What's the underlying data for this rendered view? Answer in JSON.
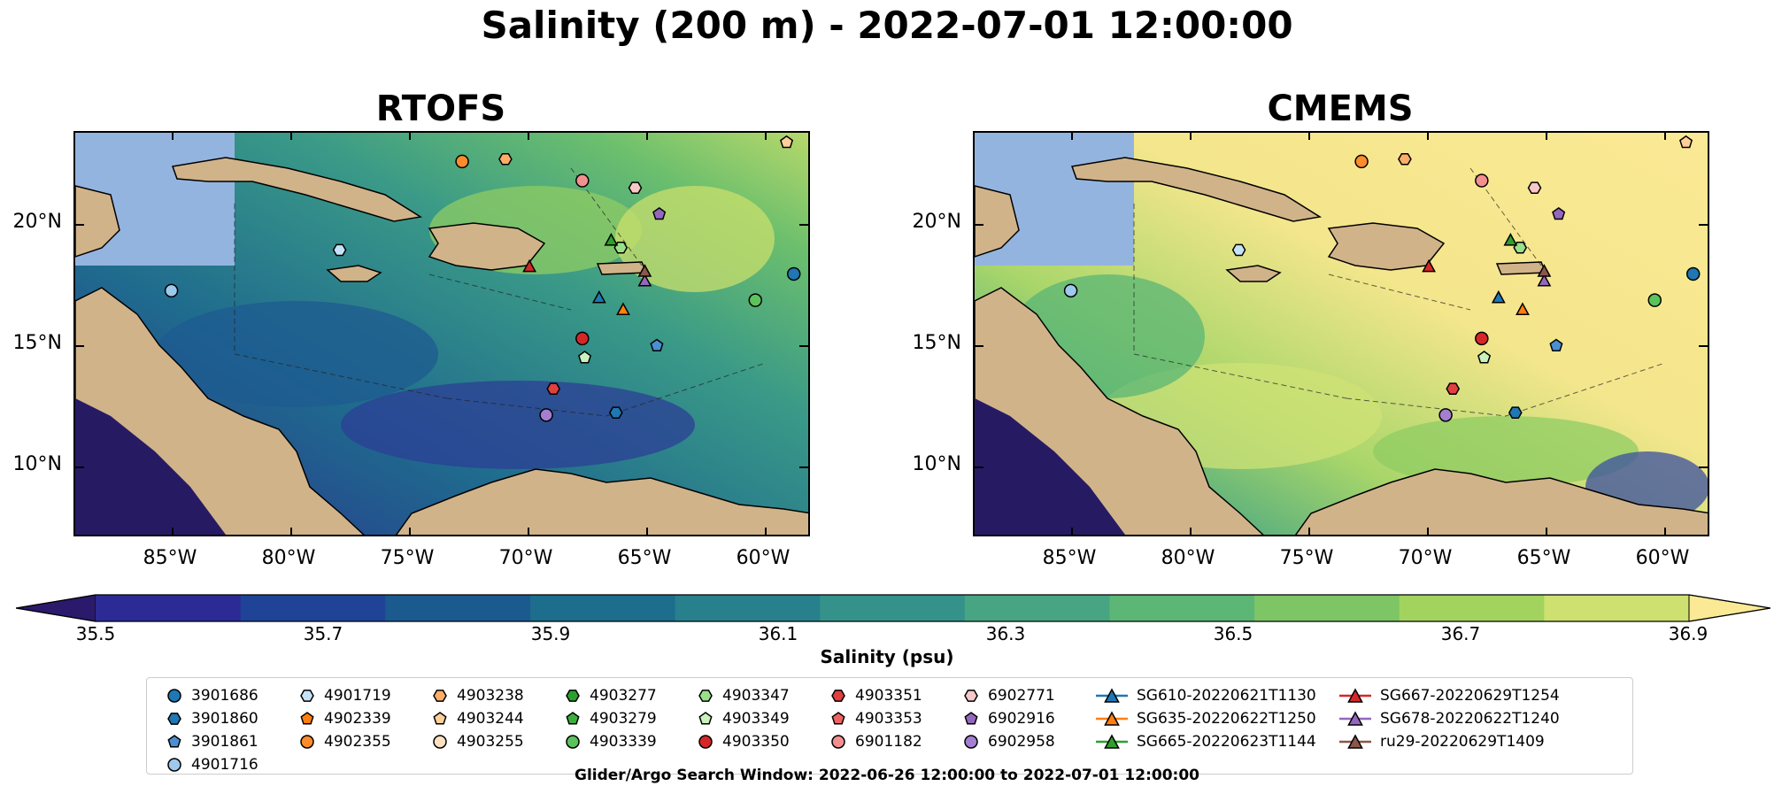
{
  "title": "Salinity (200 m) - 2022-07-01 12:00:00",
  "panels": [
    {
      "name": "rtofs",
      "title": "RTOFS"
    },
    {
      "name": "cmems",
      "title": "CMEMS"
    }
  ],
  "lat_ticks": [
    "20°N",
    "15°N",
    "10°N"
  ],
  "lon_ticks": [
    "85°W",
    "80°W",
    "75°W",
    "70°W",
    "65°W",
    "60°W"
  ],
  "colorbar": {
    "label": "Salinity (psu)",
    "ticks": [
      "35.5",
      "35.7",
      "35.9",
      "36.1",
      "36.3",
      "36.5",
      "36.7",
      "36.9"
    ],
    "range": [
      35.5,
      36.9
    ],
    "colors": [
      "#2b1a6b",
      "#2c2a95",
      "#1f4397",
      "#1b5a8f",
      "#1d6d8c",
      "#27808c",
      "#35928a",
      "#48a583",
      "#5cb676",
      "#7dc565",
      "#a3d35f",
      "#cee06f",
      "#fbe995"
    ]
  },
  "legend": [
    {
      "label": "3901686",
      "shape": "circle",
      "color": "#1f77b4"
    },
    {
      "label": "3901860",
      "shape": "hexagon",
      "color": "#1f77b4"
    },
    {
      "label": "3901861",
      "shape": "pentagon",
      "color": "#4a8fd1"
    },
    {
      "label": "4901716",
      "shape": "circle",
      "color": "#9ec8ec"
    },
    {
      "label": "4901719",
      "shape": "hexagon",
      "color": "#c6e2f7"
    },
    {
      "label": "4902339",
      "shape": "pentagon",
      "color": "#ff7f0e"
    },
    {
      "label": "4902355",
      "shape": "circle",
      "color": "#ff8c2a"
    },
    {
      "label": "4903238",
      "shape": "hexagon",
      "color": "#ffad66"
    },
    {
      "label": "4903244",
      "shape": "pentagon",
      "color": "#ffcf99"
    },
    {
      "label": "4903255",
      "shape": "circle",
      "color": "#ffe0c0"
    },
    {
      "label": "4903277",
      "shape": "hexagon",
      "color": "#2ca02c"
    },
    {
      "label": "4903279",
      "shape": "pentagon",
      "color": "#3cae3c"
    },
    {
      "label": "4903339",
      "shape": "circle",
      "color": "#5cc25c"
    },
    {
      "label": "4903347",
      "shape": "hexagon",
      "color": "#98e08a"
    },
    {
      "label": "4903349",
      "shape": "pentagon",
      "color": "#c9f2bd"
    },
    {
      "label": "4903350",
      "shape": "circle",
      "color": "#d62728"
    },
    {
      "label": "4903351",
      "shape": "hexagon",
      "color": "#e0403f"
    },
    {
      "label": "4903353",
      "shape": "pentagon",
      "color": "#f06262"
    },
    {
      "label": "6901182",
      "shape": "circle",
      "color": "#f28f8f"
    },
    {
      "label": "6902771",
      "shape": "hexagon",
      "color": "#f8c8c8"
    },
    {
      "label": "6902916",
      "shape": "pentagon",
      "color": "#9467bd"
    },
    {
      "label": "6902958",
      "shape": "circle",
      "color": "#a47ed0"
    },
    {
      "label": "SG610-20220621T1130",
      "shape": "triangle",
      "color": "#1f77b4"
    },
    {
      "label": "SG635-20220622T1250",
      "shape": "triangle",
      "color": "#ff7f0e"
    },
    {
      "label": "SG665-20220623T1144",
      "shape": "triangle",
      "color": "#2ca02c"
    },
    {
      "label": "SG667-20220629T1254",
      "shape": "triangle",
      "color": "#d62728"
    },
    {
      "label": "SG678-20220622T1240",
      "shape": "triangle",
      "color": "#9467bd"
    },
    {
      "label": "ru29-20220629T1409",
      "shape": "triangle",
      "color": "#8c564b"
    }
  ],
  "footer": "Glider/Argo Search Window: 2022-06-26 12:00:00 to 2022-07-01 12:00:00"
}
